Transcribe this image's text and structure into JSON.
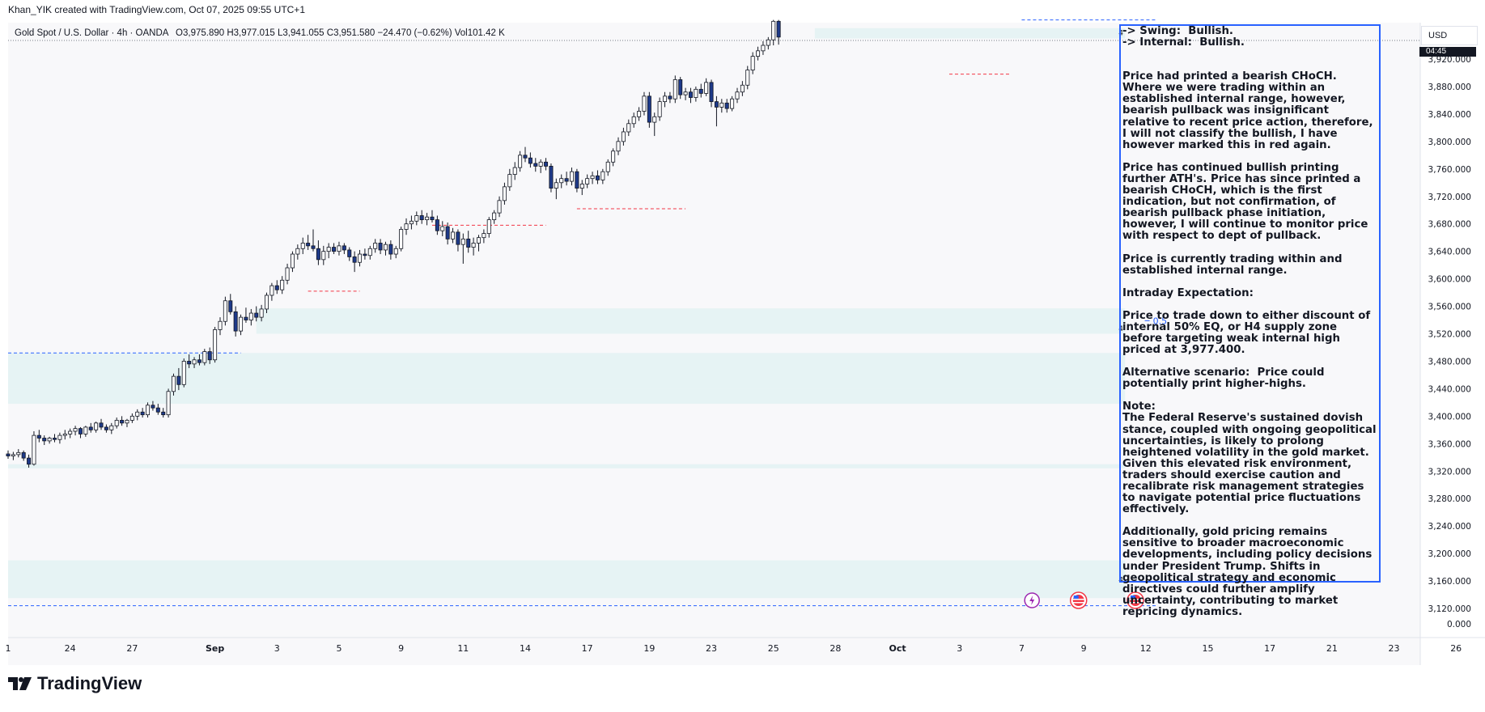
{
  "header": {
    "credit": "Khan_YIK created with TradingView.com, Oct 07, 2025 09:55 UTC+1",
    "symbol": "Gold Spot / U.S. Dollar · 4h · OANDA",
    "open": "O3,975.890",
    "high": "H3,977.015",
    "low": "L3,941.055",
    "close": "C3,951.580",
    "change": "−24.470 (−0.62%)",
    "volume": "Vol101.42 K"
  },
  "price_axis": {
    "currency": "USD",
    "countdown": "04:45",
    "ticks": [
      "3,920.000",
      "3,880.000",
      "3,840.000",
      "3,800.000",
      "3,760.000",
      "3,720.000",
      "3,680.000",
      "3,640.000",
      "3,600.000",
      "3,560.000",
      "3,520.000",
      "3,480.000",
      "3,440.000",
      "3,400.000",
      "3,360.000",
      "3,320.000",
      "3,280.000",
      "3,240.000",
      "3,200.000",
      "3,160.000",
      "3,120.000"
    ],
    "volume_tick": "0.000"
  },
  "time_axis": {
    "ticks": [
      {
        "label": "1",
        "bar": 0
      },
      {
        "label": "24",
        "bar": 12
      },
      {
        "label": "27",
        "bar": 24
      },
      {
        "label": "Sep",
        "bar": 40,
        "bold": true
      },
      {
        "label": "3",
        "bar": 52
      },
      {
        "label": "5",
        "bar": 64
      },
      {
        "label": "9",
        "bar": 76
      },
      {
        "label": "11",
        "bar": 88
      },
      {
        "label": "14",
        "bar": 100
      },
      {
        "label": "17",
        "bar": 112
      },
      {
        "label": "19",
        "bar": 124
      },
      {
        "label": "23",
        "bar": 136
      },
      {
        "label": "25",
        "bar": 148
      },
      {
        "label": "28",
        "bar": 160
      },
      {
        "label": "Oct",
        "bar": 172,
        "bold": true
      },
      {
        "label": "3",
        "bar": 184
      },
      {
        "label": "7",
        "bar": 196
      },
      {
        "label": "9",
        "bar": 208
      },
      {
        "label": "12",
        "bar": 220
      },
      {
        "label": "15",
        "bar": 232
      },
      {
        "label": "17",
        "bar": 244
      },
      {
        "label": "21",
        "bar": 256
      },
      {
        "label": "23",
        "bar": 268
      },
      {
        "label": "26",
        "bar": 280
      }
    ]
  },
  "colors": {
    "up": "#ffffff",
    "down": "#1e3a8a",
    "wick": "#131722",
    "zone": "#e0f2f1",
    "dashed_blue": "#2962ff",
    "dashed_red": "#f23645",
    "box_border": "#2962ff"
  },
  "chart_data": {
    "type": "candlestick",
    "timeframe": "4h",
    "ylim": [
      3100,
      3940
    ],
    "candles": [
      [
        3345,
        3350,
        3338,
        3342
      ],
      [
        3342,
        3348,
        3336,
        3344
      ],
      [
        3344,
        3352,
        3340,
        3347
      ],
      [
        3347,
        3350,
        3335,
        3339
      ],
      [
        3339,
        3344,
        3325,
        3330
      ],
      [
        3330,
        3378,
        3328,
        3372
      ],
      [
        3372,
        3380,
        3362,
        3368
      ],
      [
        3368,
        3372,
        3358,
        3364
      ],
      [
        3364,
        3370,
        3360,
        3368
      ],
      [
        3368,
        3374,
        3362,
        3366
      ],
      [
        3366,
        3376,
        3360,
        3372
      ],
      [
        3372,
        3380,
        3366,
        3374
      ],
      [
        3374,
        3382,
        3368,
        3378
      ],
      [
        3378,
        3386,
        3372,
        3382
      ],
      [
        3382,
        3384,
        3368,
        3374
      ],
      [
        3374,
        3386,
        3370,
        3384
      ],
      [
        3384,
        3390,
        3376,
        3380
      ],
      [
        3380,
        3392,
        3376,
        3390
      ],
      [
        3390,
        3396,
        3380,
        3384
      ],
      [
        3384,
        3388,
        3376,
        3380
      ],
      [
        3380,
        3390,
        3374,
        3386
      ],
      [
        3386,
        3398,
        3382,
        3394
      ],
      [
        3394,
        3400,
        3386,
        3390
      ],
      [
        3390,
        3396,
        3384,
        3394
      ],
      [
        3394,
        3404,
        3390,
        3400
      ],
      [
        3400,
        3410,
        3394,
        3406
      ],
      [
        3406,
        3412,
        3398,
        3402
      ],
      [
        3402,
        3420,
        3398,
        3416
      ],
      [
        3416,
        3422,
        3408,
        3412
      ],
      [
        3412,
        3418,
        3402,
        3406
      ],
      [
        3406,
        3412,
        3398,
        3402
      ],
      [
        3402,
        3440,
        3398,
        3436
      ],
      [
        3436,
        3462,
        3430,
        3458
      ],
      [
        3458,
        3470,
        3438,
        3446
      ],
      [
        3446,
        3484,
        3442,
        3480
      ],
      [
        3480,
        3490,
        3470,
        3476
      ],
      [
        3476,
        3486,
        3470,
        3482
      ],
      [
        3482,
        3490,
        3474,
        3478
      ],
      [
        3478,
        3498,
        3474,
        3494
      ],
      [
        3494,
        3500,
        3476,
        3482
      ],
      [
        3482,
        3530,
        3478,
        3526
      ],
      [
        3526,
        3544,
        3518,
        3538
      ],
      [
        3538,
        3574,
        3532,
        3568
      ],
      [
        3568,
        3578,
        3548,
        3552
      ],
      [
        3552,
        3560,
        3516,
        3524
      ],
      [
        3524,
        3548,
        3518,
        3544
      ],
      [
        3544,
        3558,
        3536,
        3540
      ],
      [
        3540,
        3556,
        3532,
        3550
      ],
      [
        3550,
        3560,
        3538,
        3544
      ],
      [
        3544,
        3562,
        3538,
        3556
      ],
      [
        3556,
        3580,
        3550,
        3576
      ],
      [
        3576,
        3594,
        3568,
        3590
      ],
      [
        3590,
        3598,
        3578,
        3584
      ],
      [
        3584,
        3604,
        3578,
        3598
      ],
      [
        3598,
        3622,
        3592,
        3616
      ],
      [
        3616,
        3640,
        3610,
        3636
      ],
      [
        3636,
        3650,
        3628,
        3644
      ],
      [
        3644,
        3660,
        3636,
        3652
      ],
      [
        3652,
        3664,
        3642,
        3648
      ],
      [
        3648,
        3672,
        3640,
        3644
      ],
      [
        3644,
        3656,
        3620,
        3628
      ],
      [
        3628,
        3648,
        3620,
        3640
      ],
      [
        3640,
        3652,
        3630,
        3646
      ],
      [
        3646,
        3652,
        3636,
        3640
      ],
      [
        3640,
        3654,
        3634,
        3648
      ],
      [
        3648,
        3652,
        3636,
        3642
      ],
      [
        3642,
        3646,
        3626,
        3632
      ],
      [
        3632,
        3640,
        3610,
        3624
      ],
      [
        3624,
        3642,
        3618,
        3636
      ],
      [
        3636,
        3644,
        3628,
        3634
      ],
      [
        3634,
        3648,
        3628,
        3644
      ],
      [
        3644,
        3658,
        3638,
        3652
      ],
      [
        3652,
        3658,
        3636,
        3642
      ],
      [
        3642,
        3654,
        3634,
        3650
      ],
      [
        3650,
        3656,
        3628,
        3636
      ],
      [
        3636,
        3648,
        3630,
        3644
      ],
      [
        3644,
        3676,
        3640,
        3672
      ],
      [
        3672,
        3688,
        3664,
        3680
      ],
      [
        3680,
        3692,
        3672,
        3684
      ],
      [
        3684,
        3698,
        3678,
        3692
      ],
      [
        3692,
        3700,
        3680,
        3686
      ],
      [
        3686,
        3696,
        3678,
        3690
      ],
      [
        3690,
        3700,
        3682,
        3686
      ],
      [
        3686,
        3692,
        3664,
        3670
      ],
      [
        3670,
        3684,
        3662,
        3676
      ],
      [
        3676,
        3682,
        3650,
        3658
      ],
      [
        3658,
        3674,
        3652,
        3668
      ],
      [
        3668,
        3672,
        3640,
        3650
      ],
      [
        3650,
        3666,
        3622,
        3658
      ],
      [
        3658,
        3670,
        3638,
        3646
      ],
      [
        3646,
        3660,
        3634,
        3652
      ],
      [
        3652,
        3664,
        3640,
        3660
      ],
      [
        3660,
        3672,
        3652,
        3666
      ],
      [
        3666,
        3690,
        3660,
        3686
      ],
      [
        3686,
        3700,
        3680,
        3696
      ],
      [
        3696,
        3720,
        3690,
        3714
      ],
      [
        3714,
        3740,
        3708,
        3734
      ],
      [
        3734,
        3760,
        3728,
        3752
      ],
      [
        3752,
        3770,
        3744,
        3762
      ],
      [
        3762,
        3786,
        3756,
        3780
      ],
      [
        3780,
        3792,
        3770,
        3776
      ],
      [
        3776,
        3784,
        3762,
        3768
      ],
      [
        3768,
        3776,
        3756,
        3764
      ],
      [
        3764,
        3774,
        3754,
        3770
      ],
      [
        3770,
        3776,
        3758,
        3764
      ],
      [
        3764,
        3768,
        3726,
        3732
      ],
      [
        3732,
        3746,
        3716,
        3740
      ],
      [
        3740,
        3752,
        3732,
        3746
      ],
      [
        3746,
        3756,
        3736,
        3742
      ],
      [
        3742,
        3762,
        3736,
        3756
      ],
      [
        3756,
        3760,
        3726,
        3732
      ],
      [
        3732,
        3744,
        3722,
        3738
      ],
      [
        3738,
        3752,
        3732,
        3746
      ],
      [
        3746,
        3756,
        3738,
        3750
      ],
      [
        3750,
        3758,
        3738,
        3744
      ],
      [
        3744,
        3760,
        3738,
        3756
      ],
      [
        3756,
        3774,
        3750,
        3770
      ],
      [
        3770,
        3790,
        3764,
        3786
      ],
      [
        3786,
        3806,
        3780,
        3800
      ],
      [
        3800,
        3820,
        3794,
        3814
      ],
      [
        3814,
        3832,
        3808,
        3826
      ],
      [
        3826,
        3842,
        3820,
        3836
      ],
      [
        3836,
        3850,
        3830,
        3844
      ],
      [
        3844,
        3872,
        3838,
        3866
      ],
      [
        3866,
        3872,
        3820,
        3828
      ],
      [
        3828,
        3842,
        3808,
        3836
      ],
      [
        3836,
        3864,
        3830,
        3858
      ],
      [
        3858,
        3872,
        3850,
        3866
      ],
      [
        3866,
        3872,
        3856,
        3862
      ],
      [
        3862,
        3896,
        3856,
        3890
      ],
      [
        3890,
        3894,
        3862,
        3868
      ],
      [
        3868,
        3878,
        3860,
        3872
      ],
      [
        3872,
        3878,
        3856,
        3864
      ],
      [
        3864,
        3880,
        3858,
        3876
      ],
      [
        3876,
        3884,
        3864,
        3870
      ],
      [
        3870,
        3892,
        3866,
        3886
      ],
      [
        3886,
        3890,
        3850,
        3858
      ],
      [
        3858,
        3866,
        3822,
        3850
      ],
      [
        3850,
        3862,
        3842,
        3856
      ],
      [
        3856,
        3862,
        3842,
        3848
      ],
      [
        3848,
        3866,
        3844,
        3862
      ],
      [
        3862,
        3878,
        3856,
        3872
      ],
      [
        3872,
        3888,
        3866,
        3882
      ],
      [
        3882,
        3910,
        3876,
        3904
      ],
      [
        3904,
        3930,
        3898,
        3924
      ],
      [
        3924,
        3938,
        3918,
        3932
      ],
      [
        3932,
        3946,
        3926,
        3940
      ],
      [
        3940,
        3952,
        3934,
        3948
      ],
      [
        3948,
        3977,
        3940,
        3975
      ],
      [
        3975,
        3977,
        3941,
        3952
      ]
    ],
    "zones": [
      {
        "x0": 0,
        "x1": 216,
        "y0": 3440,
        "y1": 3492
      },
      {
        "x0": 0,
        "x1": 216,
        "y0": 3418,
        "y1": 3440
      },
      {
        "x0": 48,
        "x1": 216,
        "y0": 3520,
        "y1": 3557
      },
      {
        "x0": 0,
        "x1": 216,
        "y0": 3324,
        "y1": 3330
      },
      {
        "x0": 0,
        "x1": 216,
        "y0": 3135,
        "y1": 3190
      },
      {
        "x0": 156,
        "x1": 216,
        "y0": 3950,
        "y1": 3965
      }
    ],
    "zone_labels": [
      {
        "bar": 216,
        "y": 3524,
        "text": "4"
      },
      {
        "bar": 216,
        "y": 3158,
        "text": "4"
      },
      {
        "bar": 216,
        "y": 3955,
        "text": "4"
      }
    ],
    "level_labels": [
      {
        "bar": 222,
        "y": 3539,
        "text": "0.5"
      }
    ],
    "dashed_lines": [
      {
        "color": "red",
        "x0": 58,
        "x1": 68,
        "y": 3582
      },
      {
        "color": "red",
        "x0": 82,
        "x1": 104,
        "y": 3678
      },
      {
        "color": "red",
        "x0": 110,
        "x1": 131,
        "y": 3702
      },
      {
        "color": "red",
        "x0": 182,
        "x1": 194,
        "y": 3898
      },
      {
        "color": "blue",
        "x0": 0,
        "x1": 45,
        "y": 3492
      },
      {
        "color": "blue",
        "x0": 0,
        "x1": 222,
        "y": 3124
      },
      {
        "color": "blue",
        "x0": 196,
        "x1": 222,
        "y": 3977
      }
    ],
    "event_markers": [
      {
        "bar": 198,
        "type": "lightning"
      },
      {
        "bar": 207,
        "type": "flag"
      },
      {
        "bar": 218,
        "type": "flag"
      }
    ]
  },
  "analysis": {
    "lines": [
      "-> Swing:  Bullish.",
      "-> Internal:  Bullish.",
      "",
      "",
      "Price had printed a bearish CHoCH.  Where we were trading within an established internal range, however, bearish pullback was insignificant relative to recent price action, therefore, I will not classify the bullish, I have however marked this in red again.",
      "",
      "Price has continued bullish printing further ATH's. Price has since printed a bearish CHoCH, which is the first indication, but not confirmation, of bearish pullback phase initiation, however, I will continue to monitor price with respect to dept of pullback.",
      "",
      "Price is currently trading within and established internal range.",
      "",
      "Intraday Expectation:",
      "",
      "Price to trade down to either discount of internal 50% EQ, or H4 supply zone before targeting weak internal high priced at 3,977.400.",
      "",
      "Alternative scenario:  Price could potentially print higher-highs.",
      "",
      "Note:",
      "The Federal Reserve's sustained dovish stance, coupled with ongoing geopolitical uncertainties, is likely to prolong heightened volatility in the gold market. Given this elevated risk environment, traders should exercise caution and recalibrate risk management strategies to navigate potential price fluctuations effectively.",
      "",
      "Additionally, gold pricing remains sensitive to broader macroeconomic developments, including policy decisions under President Trump. Shifts in geopolitical strategy and economic directives could further amplify uncertainty, contributing to market repricing dynamics."
    ]
  },
  "branding": {
    "logo_text": "TradingView"
  }
}
